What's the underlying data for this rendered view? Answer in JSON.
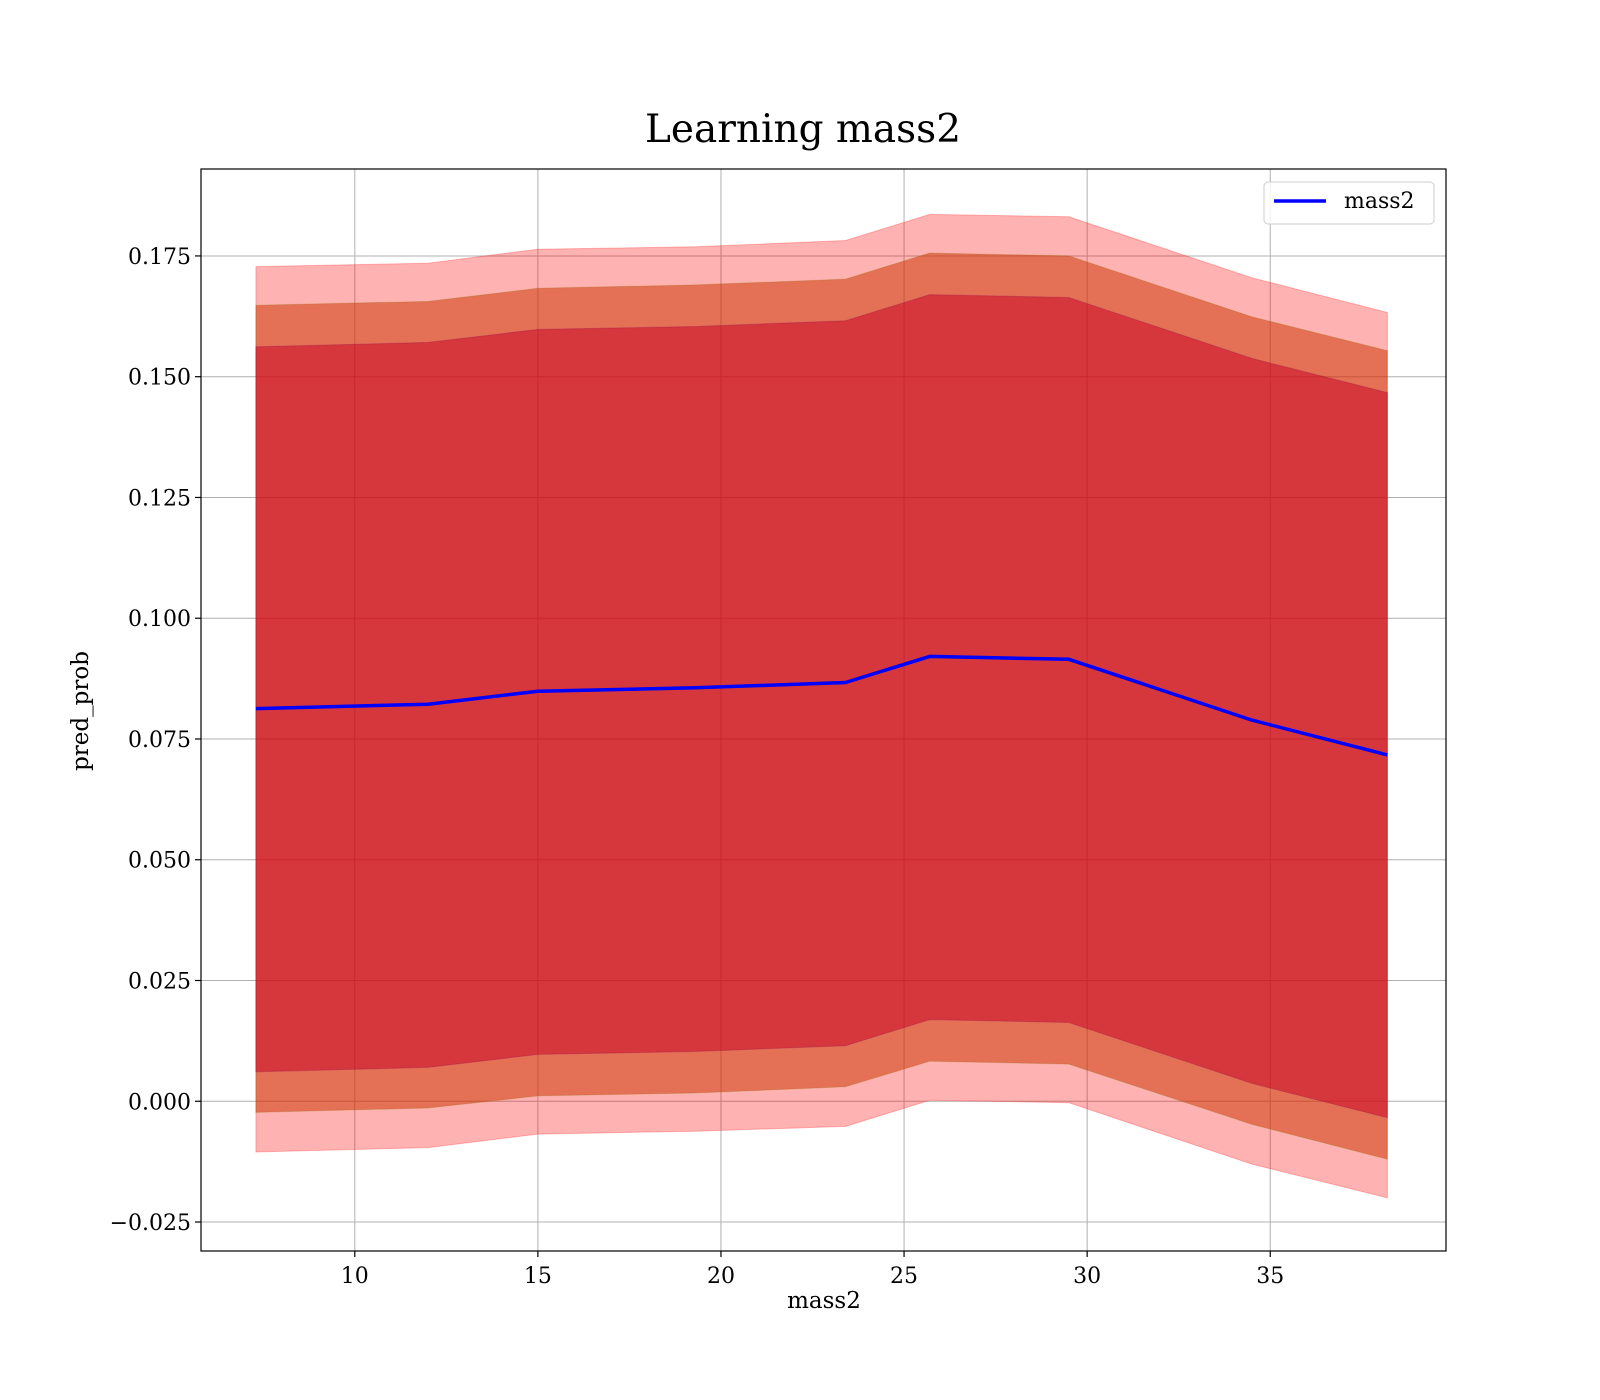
{
  "chart_data": {
    "type": "line",
    "title": "Learning mass2",
    "xlabel": "mass2",
    "ylabel": "pred_prob",
    "xlim": [
      5.8,
      39.8
    ],
    "ylim": [
      -0.031,
      0.193
    ],
    "xticks": [
      10,
      15,
      20,
      25,
      30,
      35
    ],
    "yticks": [
      -0.025,
      0.0,
      0.025,
      0.05,
      0.075,
      0.1,
      0.125,
      0.15,
      0.175
    ],
    "ytick_labels": [
      "−0.025",
      "0.000",
      "0.025",
      "0.050",
      "0.075",
      "0.100",
      "0.125",
      "0.150",
      "0.175"
    ],
    "grid": true,
    "legend_position": "top-right",
    "x": [
      7.3,
      12.0,
      15.0,
      19.3,
      23.4,
      25.7,
      29.5,
      34.5,
      38.2
    ],
    "series": [
      {
        "name": "mass2",
        "color": "#0000ff",
        "values": [
          0.0813,
          0.0822,
          0.0849,
          0.0856,
          0.0867,
          0.0921,
          0.0915,
          0.0789,
          0.0717
        ]
      }
    ],
    "bands": [
      {
        "color": "#ff0000",
        "opacity": 0.3,
        "lower": [
          -0.0105,
          -0.0096,
          -0.0068,
          -0.0062,
          -0.0052,
          0.0002,
          -0.0003,
          -0.013,
          -0.02
        ],
        "upper": [
          0.1728,
          0.1735,
          0.1764,
          0.1769,
          0.1782,
          0.1836,
          0.1831,
          0.1705,
          0.1633
        ]
      },
      {
        "color": "#ff0000",
        "opacity": 0.3,
        "lower": [
          -0.0023,
          -0.0014,
          0.0011,
          0.0017,
          0.003,
          0.0083,
          0.0077,
          -0.0048,
          -0.012
        ]
      },
      {
        "color": "#808000",
        "opacity": 0.3,
        "lower": [
          -0.0023,
          -0.0014,
          0.0011,
          0.0017,
          0.003,
          0.0083,
          0.0077,
          -0.0048,
          -0.012
        ],
        "upper": [
          0.1648,
          0.1656,
          0.1683,
          0.169,
          0.1702,
          0.1756,
          0.175,
          0.1624,
          0.1554
        ]
      },
      {
        "color": "#400080",
        "opacity": 0.3,
        "lower": [
          0.0061,
          0.007,
          0.0097,
          0.0103,
          0.0115,
          0.0169,
          0.0163,
          0.0037,
          -0.0034
        ],
        "upper": [
          0.1562,
          0.1571,
          0.1598,
          0.1604,
          0.1616,
          0.167,
          0.1664,
          0.1538,
          0.1467
        ]
      }
    ]
  }
}
